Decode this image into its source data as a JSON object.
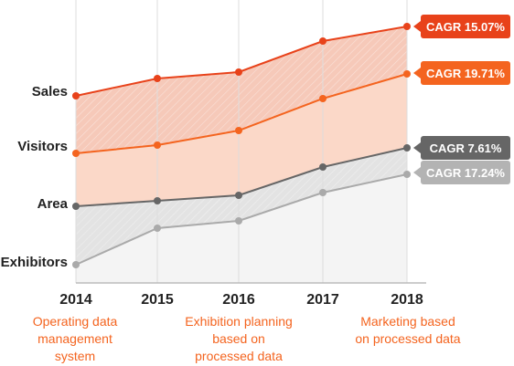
{
  "chart_data": {
    "type": "area",
    "x": [
      "2014",
      "2015",
      "2016",
      "2017",
      "2018"
    ],
    "y_categories": [
      "Sales",
      "Visitors",
      "Area",
      "Exhibitors"
    ],
    "series": [
      {
        "name": "Sales",
        "values": [
          105,
          86,
          79,
          45,
          29
        ],
        "color": "#e8421a",
        "cagr": "CAGR 15.07%"
      },
      {
        "name": "Visitors",
        "values": [
          168,
          159,
          143,
          108,
          81
        ],
        "color": "#f4641f",
        "cagr": "CAGR 19.71%"
      },
      {
        "name": "Area",
        "values": [
          226,
          220,
          214,
          183,
          162
        ],
        "color": "#666666",
        "cagr": "CAGR 7.61%"
      },
      {
        "name": "Exhibitors",
        "values": [
          290,
          250,
          242,
          211,
          191
        ],
        "color": "#aaaaaa",
        "cagr": "CAGR 17.24%"
      }
    ],
    "cagr_badges": [
      {
        "text": "CAGR 15.07%",
        "bg": "#e8421a",
        "series": 0
      },
      {
        "text": "CAGR 19.71%",
        "bg": "#f4641f",
        "series": 1
      },
      {
        "text": "CAGR 7.61%",
        "bg": "#666666",
        "series": 2
      },
      {
        "text": "CAGR 17.24%",
        "bg": "#b3b3b3",
        "series": 3
      }
    ],
    "annotations": [
      {
        "lines": [
          "Operating data",
          "management",
          "system"
        ],
        "at": "2014"
      },
      {
        "lines": [
          "Exhibition planning",
          "based on",
          "processed data"
        ],
        "at": "2016"
      },
      {
        "lines": [
          "Marketing based",
          "on processed data"
        ],
        "at": "2018"
      }
    ],
    "colors": {
      "band_sales_visitors": "#f6c9b9",
      "band_visitors_area": "#fbd8c8",
      "band_area_exhibitors": "#e3e3e3",
      "below_exhibitors": "#f4f4f4",
      "annotation_text": "#f4641f",
      "grid": "#dddddd",
      "axis": "#bbbbbb"
    }
  }
}
